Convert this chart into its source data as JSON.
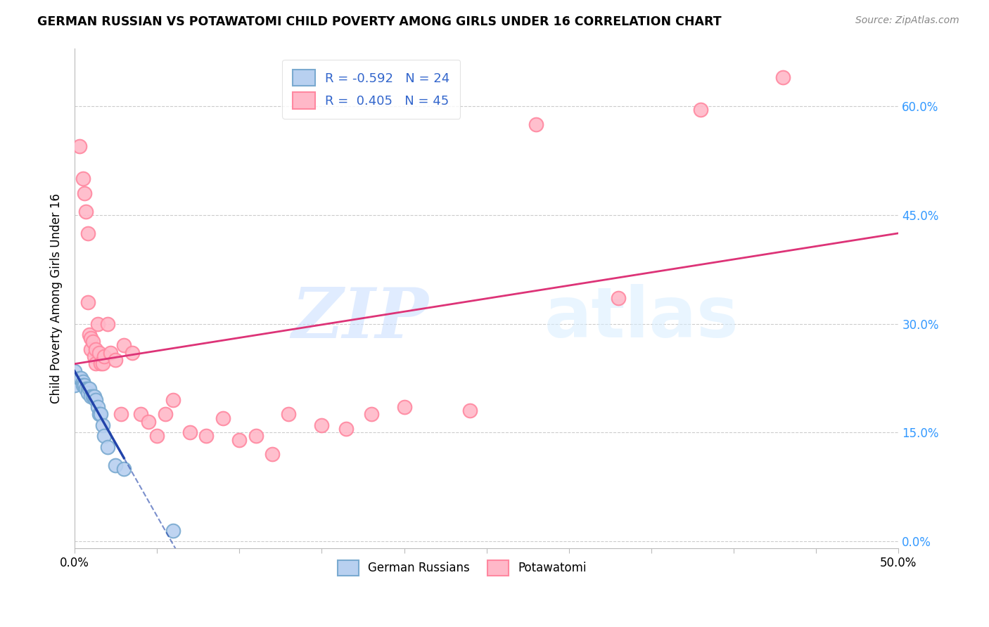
{
  "title": "GERMAN RUSSIAN VS POTAWATOMI CHILD POVERTY AMONG GIRLS UNDER 16 CORRELATION CHART",
  "source": "Source: ZipAtlas.com",
  "ylabel": "Child Poverty Among Girls Under 16",
  "xlim": [
    0,
    0.5
  ],
  "ylim": [
    -0.01,
    0.68
  ],
  "xtick_vals": [
    0.0,
    0.05,
    0.1,
    0.15,
    0.2,
    0.25,
    0.3,
    0.35,
    0.4,
    0.45,
    0.5
  ],
  "xtick_labels": [
    "0.0%",
    "",
    "",
    "",
    "",
    "",
    "",
    "",
    "",
    "",
    "50.0%"
  ],
  "ytick_vals": [
    0.0,
    0.15,
    0.3,
    0.45,
    0.6
  ],
  "ytick_labels": [
    "0.0%",
    "15.0%",
    "30.0%",
    "45.0%",
    "60.0%"
  ],
  "watermark_zip": "ZIP",
  "watermark_atlas": "atlas",
  "legend_r1": "R = -0.592",
  "legend_n1": "N = 24",
  "legend_r2": "R =  0.405",
  "legend_n2": "N = 45",
  "blue_face": "#B8D0F0",
  "blue_edge": "#7AAAD0",
  "pink_face": "#FFB8C8",
  "pink_edge": "#FF88A0",
  "trend_blue": "#2244AA",
  "trend_pink": "#DD3377",
  "blue_label": "German Russians",
  "pink_label": "Potawatomi",
  "blue_dots_x": [
    0.0,
    0.0,
    0.003,
    0.004,
    0.005,
    0.005,
    0.006,
    0.007,
    0.008,
    0.008,
    0.009,
    0.01,
    0.011,
    0.012,
    0.013,
    0.014,
    0.015,
    0.016,
    0.017,
    0.018,
    0.02,
    0.025,
    0.03,
    0.06
  ],
  "blue_dots_y": [
    0.235,
    0.215,
    0.225,
    0.225,
    0.22,
    0.215,
    0.215,
    0.21,
    0.21,
    0.205,
    0.21,
    0.2,
    0.2,
    0.2,
    0.195,
    0.185,
    0.175,
    0.175,
    0.16,
    0.145,
    0.13,
    0.105,
    0.1,
    0.015
  ],
  "pink_dots_x": [
    0.003,
    0.005,
    0.006,
    0.007,
    0.008,
    0.008,
    0.009,
    0.01,
    0.01,
    0.011,
    0.012,
    0.013,
    0.013,
    0.014,
    0.015,
    0.016,
    0.017,
    0.018,
    0.02,
    0.022,
    0.025,
    0.028,
    0.03,
    0.035,
    0.04,
    0.045,
    0.05,
    0.055,
    0.06,
    0.07,
    0.08,
    0.09,
    0.1,
    0.11,
    0.12,
    0.13,
    0.15,
    0.165,
    0.18,
    0.2,
    0.24,
    0.28,
    0.33,
    0.38,
    0.43
  ],
  "pink_dots_y": [
    0.545,
    0.5,
    0.48,
    0.455,
    0.425,
    0.33,
    0.285,
    0.28,
    0.265,
    0.275,
    0.255,
    0.265,
    0.245,
    0.3,
    0.26,
    0.245,
    0.245,
    0.255,
    0.3,
    0.26,
    0.25,
    0.175,
    0.27,
    0.26,
    0.175,
    0.165,
    0.145,
    0.175,
    0.195,
    0.15,
    0.145,
    0.17,
    0.14,
    0.145,
    0.12,
    0.175,
    0.16,
    0.155,
    0.175,
    0.185,
    0.18,
    0.575,
    0.335,
    0.595,
    0.64
  ]
}
